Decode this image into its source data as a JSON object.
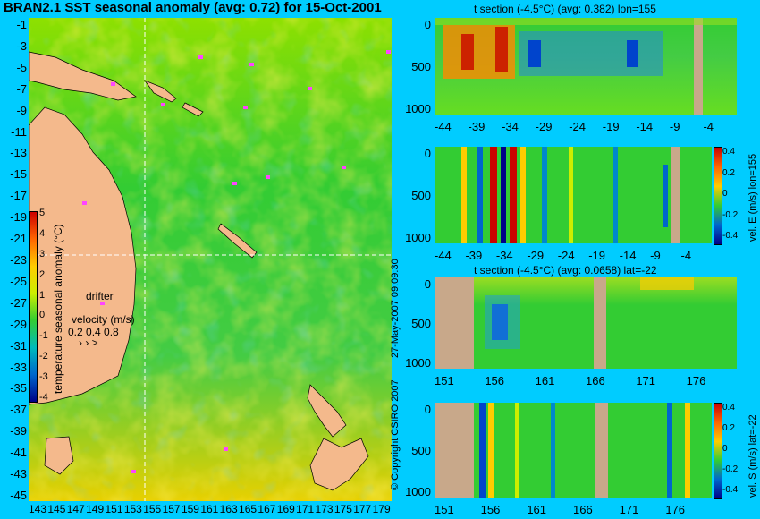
{
  "chart_data": [
    {
      "type": "heatmap",
      "title": "BRAN2.1 SST seasonal anomaly (avg: 0.72) for 15-Oct-2001",
      "x_ticks": [
        "143",
        "145",
        "147",
        "149",
        "151",
        "153",
        "155",
        "157",
        "159",
        "161",
        "163",
        "165",
        "167",
        "169",
        "171",
        "173",
        "175",
        "177",
        "179"
      ],
      "y_ticks": [
        "-1",
        "-3",
        "-5",
        "-7",
        "-9",
        "-11",
        "-13",
        "-15",
        "-17",
        "-19",
        "-21",
        "-23",
        "-25",
        "-27",
        "-29",
        "-31",
        "-33",
        "-35",
        "-37",
        "-39",
        "-41",
        "-43",
        "-45"
      ],
      "xlim": [
        143,
        180
      ],
      "ylim": [
        -45,
        0
      ],
      "crosshair": {
        "lon": 155,
        "lat": -22
      },
      "colorbar": {
        "label": "temperature seasonal anomaly (°C)",
        "ticks": [
          "5",
          "4",
          "3",
          "2",
          "1",
          "0",
          "-1",
          "-2",
          "-3",
          "-4"
        ],
        "range": [
          -4,
          5
        ]
      },
      "legend": {
        "drifter": "drifter",
        "velocity_label": "velocity (m/s)",
        "velocity_values": "0.2 0.4 0.8"
      }
    },
    {
      "type": "heatmap",
      "title": "t section (-4.5°C) (avg: 0.382) lon=155",
      "x_ticks": [
        "-44",
        "-39",
        "-34",
        "-29",
        "-24",
        "-19",
        "-14",
        "-9",
        "-4"
      ],
      "y_ticks": [
        "0",
        "500",
        "1000"
      ]
    },
    {
      "type": "heatmap",
      "title": "",
      "x_ticks": [
        "-44",
        "-39",
        "-34",
        "-29",
        "-24",
        "-19",
        "-14",
        "-9",
        "-4"
      ],
      "y_ticks": [
        "0",
        "500",
        "1000"
      ],
      "colorbar": {
        "label": "vel. E (m/s) lon=155",
        "ticks": [
          "0.4",
          "0.2",
          "0",
          "-0.2",
          "-0.4"
        ],
        "range": [
          -0.4,
          0.4
        ]
      }
    },
    {
      "type": "heatmap",
      "title": "t section (-4.5°C) (avg: 0.0658) lat=-22",
      "x_ticks": [
        "151",
        "156",
        "161",
        "166",
        "171",
        "176"
      ],
      "y_ticks": [
        "0",
        "500",
        "1000"
      ]
    },
    {
      "type": "heatmap",
      "title": "",
      "x_ticks": [
        "151",
        "156",
        "161",
        "166",
        "171",
        "176"
      ],
      "y_ticks": [
        "0",
        "500",
        "1000"
      ],
      "colorbar": {
        "label": "vel. S (m/s) lat=-22",
        "ticks": [
          "0.4",
          "0.2",
          "0",
          "-0.2",
          "-0.4"
        ],
        "range": [
          -0.4,
          0.4
        ]
      }
    }
  ],
  "side_text": {
    "date": "27-May-2007 09:09:30",
    "copyright": "© Copyright CSIRO 2007"
  },
  "colors": {
    "background": "#00ccff",
    "land": "#f4b98c",
    "section_land": "#c8a88a",
    "anomaly_base": "#33cc33",
    "drifter": "#ff44ff"
  }
}
